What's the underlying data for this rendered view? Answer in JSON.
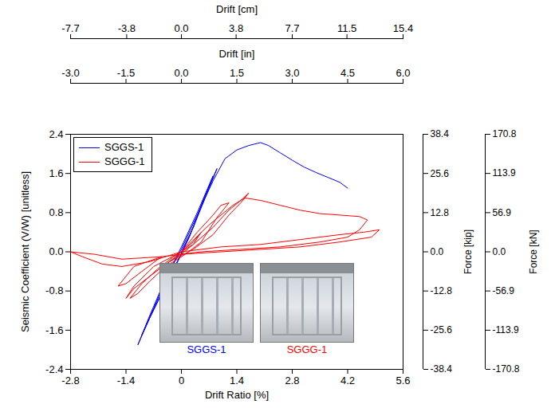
{
  "chart_data": {
    "type": "line",
    "xlabel": "Drift Ratio [%]",
    "ylabel": "Seismic Coefficient (V/W) [unitless]",
    "xlim": [
      -2.8,
      5.6
    ],
    "xticks": [
      -2.8,
      -1.4,
      0,
      1.4,
      2.8,
      4.2,
      5.6
    ],
    "ylim": [
      -2.4,
      2.4
    ],
    "yticks": [
      -2.4,
      -1.6,
      -0.8,
      {
        "value": 0,
        "label": "0.0"
      },
      0.8,
      1.6,
      2.4
    ],
    "top_axes": [
      {
        "label": "Drift [cm]",
        "lim": [
          -7.7,
          15.4
        ],
        "ticks": [
          -7.7,
          -3.8,
          {
            "value": 0,
            "label": "0.0"
          },
          3.8,
          7.7,
          11.5,
          15.4
        ]
      },
      {
        "label": "Drift [in]",
        "lim": [
          -3.0,
          6.0
        ],
        "ticks": [
          {
            "value": -3,
            "label": "-3.0"
          },
          -1.5,
          {
            "value": 0,
            "label": "0.0"
          },
          1.5,
          {
            "value": 3,
            "label": "3.0"
          },
          4.5,
          {
            "value": 6,
            "label": "6.0"
          }
        ]
      }
    ],
    "right_axes": [
      {
        "label": "Force [kip]",
        "lim": [
          -38.4,
          38.4
        ],
        "ticks": [
          -38.4,
          -25.6,
          -12.8,
          {
            "value": 0,
            "label": "0.0"
          },
          12.8,
          25.6,
          38.4
        ]
      },
      {
        "label": "Force [kN]",
        "lim": [
          -170.8,
          170.8
        ],
        "ticks": [
          -170.8,
          -113.9,
          -56.9,
          {
            "value": 0,
            "label": "0.0"
          },
          56.9,
          113.9,
          170.8
        ]
      }
    ],
    "legend": "top-left",
    "series": [
      {
        "name": "SGGS-1",
        "color": "#0000ff",
        "x": [
          0,
          0.3,
          0.6,
          0.9,
          0.6,
          0.3,
          0,
          -0.4,
          -0.8,
          -1.1,
          -0.8,
          -0.4,
          0,
          0.4,
          0.8,
          0.55,
          0.2,
          -0.2,
          -0.6,
          -1.0,
          -0.7,
          -0.3,
          0,
          0.4,
          0.8,
          1.1,
          1.4,
          1.7,
          2.0,
          2.2,
          2.5,
          2.8,
          3.1,
          3.4,
          3.7,
          4.0,
          4.2
        ],
        "values": [
          0,
          0.5,
          1.1,
          1.7,
          1.15,
          0.5,
          -0.05,
          -0.7,
          -1.35,
          -1.9,
          -1.3,
          -0.55,
          0.1,
          0.8,
          1.55,
          1.05,
          0.3,
          -0.35,
          -1.0,
          -1.7,
          -1.15,
          -0.4,
          0.05,
          0.75,
          1.45,
          1.9,
          2.08,
          2.17,
          2.23,
          2.17,
          2.02,
          1.87,
          1.73,
          1.62,
          1.52,
          1.42,
          1.3
        ]
      },
      {
        "name": "SGGG-1",
        "color": "#ff0000",
        "x": [
          0,
          0.3,
          0.5,
          0.3,
          0,
          -0.3,
          -0.5,
          -0.3,
          0,
          0.4,
          0.8,
          1.0,
          1.2,
          0.9,
          0.5,
          0.1,
          -0.4,
          -0.8,
          -1.1,
          -1.3,
          -1.0,
          -0.6,
          -0.2,
          0.3,
          0.8,
          1.2,
          1.5,
          1.7,
          1.5,
          1.2,
          0.8,
          0.3,
          -0.3,
          -0.8,
          -1.2,
          -1.4,
          -1.2,
          -0.7,
          0,
          0.7,
          1.3,
          1.6,
          2.0,
          2.5,
          3.0,
          3.5,
          4.0,
          4.5,
          4.7,
          4.5,
          4.2,
          3.5,
          2.5,
          1.5,
          0.5,
          -0.5,
          -1.0,
          -1.4,
          -1.6,
          -1.2,
          -0.5,
          -1.5,
          -2.2,
          -2.8,
          -2.5,
          -2.0,
          -1.5,
          -0.8,
          0,
          1.0,
          2.0,
          3.0,
          4.0,
          4.6,
          5.0,
          4.8,
          4.0,
          3.0,
          2.0,
          1.0,
          0
        ],
        "values": [
          0,
          0.2,
          0.4,
          0.15,
          -0.05,
          -0.2,
          -0.35,
          -0.2,
          0,
          0.4,
          0.75,
          0.95,
          1.0,
          0.7,
          0.2,
          -0.05,
          -0.3,
          -0.6,
          -0.85,
          -0.95,
          -0.65,
          -0.35,
          -0.1,
          0.15,
          0.5,
          0.85,
          1.05,
          1.2,
          1.0,
          0.75,
          0.35,
          0.05,
          -0.2,
          -0.5,
          -0.75,
          -0.95,
          -0.7,
          -0.3,
          0,
          0.55,
          0.95,
          1.1,
          1.05,
          0.95,
          0.85,
          0.78,
          0.75,
          0.72,
          0.65,
          0.45,
          0.3,
          0.2,
          0.1,
          0.05,
          0.0,
          -0.1,
          -0.4,
          -0.65,
          -0.7,
          -0.3,
          -0.1,
          -0.15,
          -0.05,
          0.0,
          -0.1,
          -0.25,
          -0.3,
          -0.2,
          0,
          0.1,
          0.15,
          0.25,
          0.35,
          0.4,
          0.45,
          0.3,
          0.2,
          0.1,
          0.05,
          0.0,
          -0.05
        ]
      }
    ],
    "annotations": [
      {
        "text": "SGGS-1",
        "color": "#0000ff"
      },
      {
        "text": "SGGG-1",
        "color": "#ff0000"
      }
    ]
  }
}
